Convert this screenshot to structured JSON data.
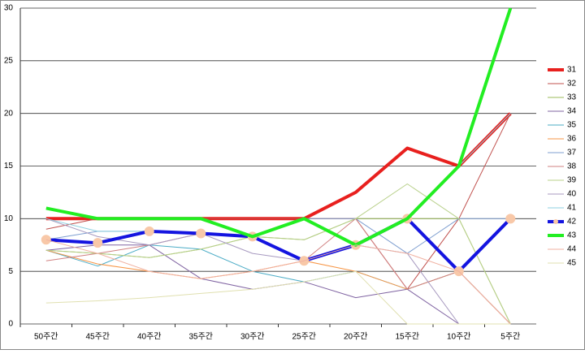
{
  "chart_data": {
    "type": "line",
    "categories": [
      "50주간",
      "45주간",
      "40주간",
      "35주간",
      "30주간",
      "25주간",
      "20주간",
      "15주간",
      "10주간",
      "5주간"
    ],
    "ylim": [
      0,
      30
    ],
    "yticks": [
      0,
      5,
      10,
      15,
      20,
      25,
      30
    ],
    "grid": true,
    "legend": "right",
    "series": [
      {
        "name": "31",
        "color": "#e8201e",
        "width": 4,
        "values": [
          10,
          10,
          10,
          10,
          10,
          10,
          12.5,
          16.7,
          15,
          20
        ]
      },
      {
        "name": "32",
        "color": "#c0504d",
        "width": 1,
        "values": [
          9,
          10,
          10,
          10,
          10,
          10,
          10,
          3.3,
          10,
          20
        ]
      },
      {
        "name": "33",
        "color": "#9bbb59",
        "width": 1,
        "values": [
          7,
          6.7,
          6.3,
          7.1,
          8.3,
          8,
          10,
          10,
          10,
          0
        ]
      },
      {
        "name": "34",
        "color": "#8064a2",
        "width": 1,
        "values": [
          7,
          7.5,
          7.5,
          4.3,
          3.3,
          4,
          2.5,
          3.3,
          0,
          0
        ]
      },
      {
        "name": "35",
        "color": "#4bacc6",
        "width": 1,
        "values": [
          7,
          5.5,
          7.5,
          7.1,
          5,
          4,
          5,
          3.3,
          5,
          0
        ]
      },
      {
        "name": "36",
        "color": "#f79646",
        "width": 1,
        "values": [
          7,
          5.7,
          5,
          4.3,
          5,
          6,
          5,
          3.3,
          5,
          0
        ]
      },
      {
        "name": "37",
        "color": "#7f9fd0",
        "width": 1,
        "values": [
          8,
          8.8,
          8.8,
          8.6,
          8.3,
          10,
          10,
          6.7,
          10,
          10
        ]
      },
      {
        "name": "38",
        "color": "#d08080",
        "width": 1,
        "values": [
          6,
          6.7,
          7.5,
          8.6,
          8.3,
          6,
          10,
          3.3,
          5,
          0
        ]
      },
      {
        "name": "39",
        "color": "#b8d08a",
        "width": 1,
        "values": [
          7,
          6.7,
          6.3,
          7.1,
          8.3,
          8,
          10,
          13.3,
          10,
          0
        ]
      },
      {
        "name": "40",
        "color": "#a89ac0",
        "width": 1,
        "values": [
          10,
          8.3,
          7.5,
          8.6,
          6.7,
          6,
          7.5,
          6.7,
          0,
          0
        ]
      },
      {
        "name": "41",
        "color": "#8dd0e0",
        "width": 1,
        "values": [
          10,
          8.8,
          8.8,
          8.6,
          8.3,
          10,
          7.5,
          10,
          15,
          20
        ]
      },
      {
        "name": "42",
        "color": "#1414e0",
        "width": 4,
        "marker_color": "#f8c8a8",
        "values": [
          8,
          7.7,
          8.8,
          8.6,
          8.3,
          6,
          7.5,
          10,
          5,
          10
        ]
      },
      {
        "name": "43",
        "color": "#22ee22",
        "width": 4,
        "values": [
          11,
          10,
          10,
          10,
          8.3,
          10,
          7.5,
          10,
          15,
          30
        ]
      },
      {
        "name": "44",
        "color": "#f0b0a0",
        "width": 1,
        "values": [
          8,
          6.7,
          5,
          4.3,
          5,
          6,
          7.5,
          6.7,
          5,
          0
        ]
      },
      {
        "name": "45",
        "color": "#e0e0b0",
        "width": 1,
        "values": [
          2,
          2.2,
          2.5,
          2.9,
          3.3,
          4,
          5,
          0,
          0,
          0
        ]
      }
    ]
  }
}
